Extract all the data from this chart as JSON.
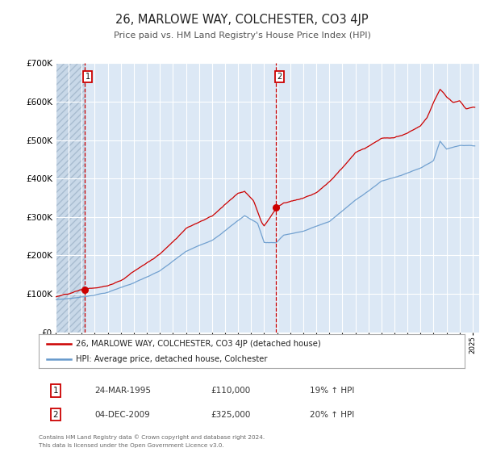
{
  "title": "26, MARLOWE WAY, COLCHESTER, CO3 4JP",
  "subtitle": "Price paid vs. HM Land Registry's House Price Index (HPI)",
  "red_label": "26, MARLOWE WAY, COLCHESTER, CO3 4JP (detached house)",
  "blue_label": "HPI: Average price, detached house, Colchester",
  "transaction1_date": "24-MAR-1995",
  "transaction1_price": 110000,
  "transaction1_hpi": "19% ↑ HPI",
  "transaction2_date": "04-DEC-2009",
  "transaction2_price": 325000,
  "transaction2_hpi": "20% ↑ HPI",
  "transaction1_year": 1995.23,
  "transaction2_year": 2009.92,
  "footnote1": "Contains HM Land Registry data © Crown copyright and database right 2024.",
  "footnote2": "This data is licensed under the Open Government Licence v3.0.",
  "ylim_max": 700000,
  "bg_color": "#dce8f5",
  "hatch_color": "#c8d8e8",
  "grid_color": "#ffffff",
  "red_color": "#cc0000",
  "blue_color": "#6699cc",
  "xmin": 1993,
  "xmax": 2025.5
}
